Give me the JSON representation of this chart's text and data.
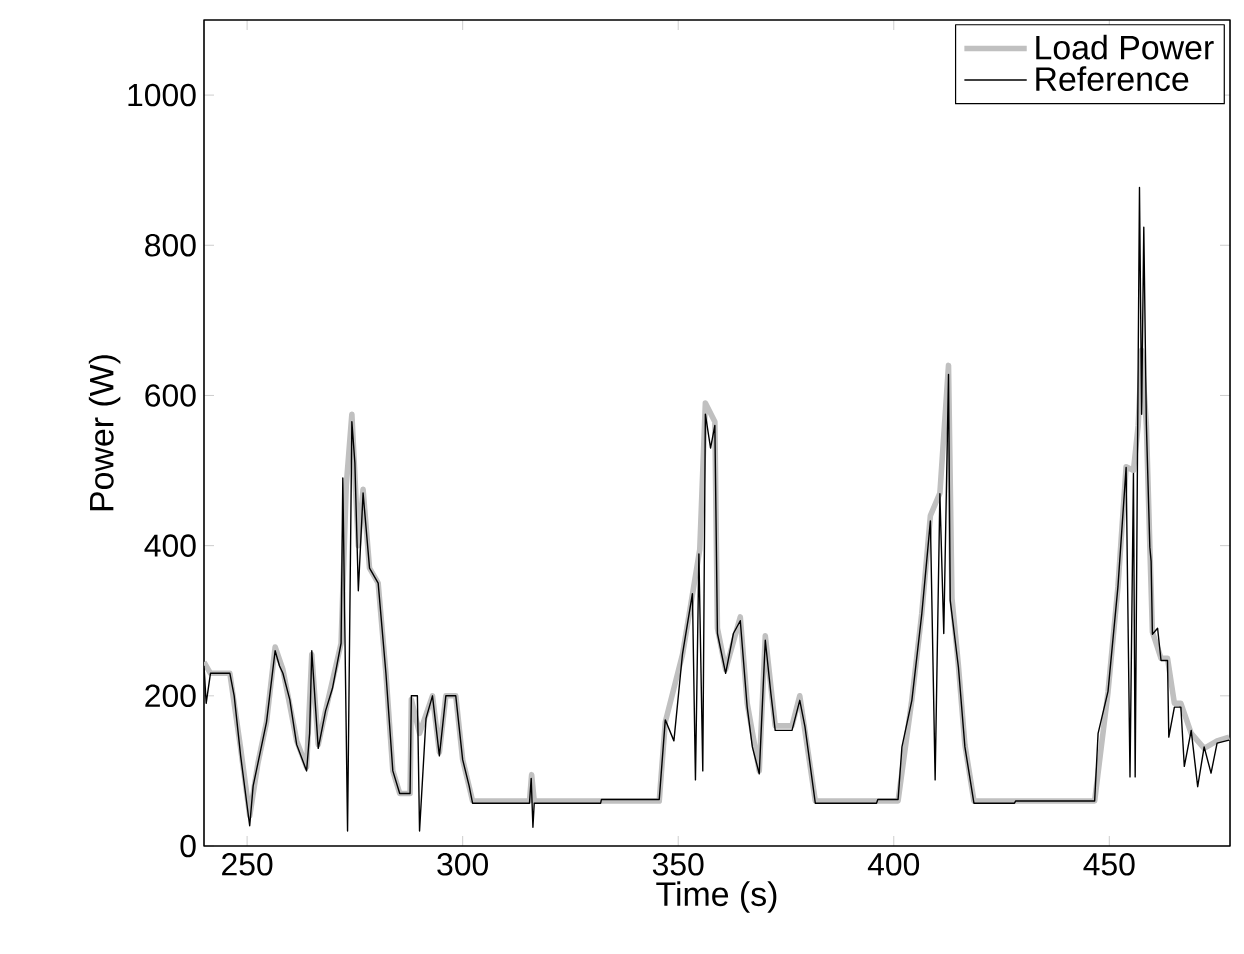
{
  "chart_data": {
    "type": "line",
    "xlabel": "Time (s)",
    "ylabel": "Power (W)",
    "xlim": [
      240,
      478
    ],
    "ylim": [
      0,
      1100
    ],
    "xticks": [
      250,
      300,
      350,
      400,
      450
    ],
    "yticks": [
      0,
      200,
      400,
      600,
      800,
      1000
    ],
    "legend": "top right",
    "grid": false,
    "line_style": "solid",
    "marker": "none",
    "series": [
      {
        "name": "Load Power",
        "color": "#c0c0c0",
        "x": [
          240,
          241.5,
          246,
          248.5,
          250.6,
          252.5,
          254.5,
          256.5,
          258.3,
          261.5,
          263.8,
          265,
          266.5,
          268.2,
          271.8,
          273,
          274.3,
          275.8,
          276.9,
          278.4,
          280.4,
          282.2,
          283.8,
          285.4,
          287.8,
          288.1,
          290,
          291.5,
          293,
          294.6,
          296.1,
          298.4,
          300,
          302.3,
          315.5,
          316,
          316.6,
          345.6,
          347,
          351,
          353.3,
          355,
          356.3,
          358.5,
          359.1,
          361,
          364.4,
          366,
          368.8,
          370.2,
          372.5,
          376.4,
          378.2,
          381.8,
          401,
          404.2,
          406.5,
          408.5,
          410.7,
          412.7,
          413.5,
          415,
          416.5,
          418.6,
          446.6,
          449.7,
          452,
          453.9,
          455.6,
          456.7,
          457.5,
          458.6,
          459.4,
          460,
          462,
          463.5,
          465.1,
          466.6,
          469,
          472,
          475,
          477.8
        ],
        "values": [
          245,
          230,
          230,
          130,
          40,
          110,
          165,
          265,
          235,
          140,
          105,
          255,
          135,
          180,
          270,
          480,
          575,
          400,
          475,
          370,
          350,
          230,
          100,
          70,
          70,
          195,
          150,
          175,
          200,
          125,
          200,
          200,
          115,
          60,
          60,
          95,
          60,
          60,
          165,
          255,
          335,
          395,
          590,
          565,
          290,
          235,
          305,
          190,
          100,
          280,
          160,
          160,
          200,
          60,
          60,
          195,
          310,
          440,
          470,
          640,
          330,
          240,
          135,
          60,
          60,
          205,
          345,
          505,
          500,
          560,
          660,
          560,
          400,
          285,
          250,
          250,
          190,
          190,
          150,
          130,
          140,
          145
        ]
      },
      {
        "name": "Reference",
        "color": "#000000",
        "x": [
          240,
          240.5,
          241.5,
          246,
          247,
          248.5,
          250.6,
          251.4,
          252.5,
          254.5,
          256.5,
          257.5,
          258.3,
          259.9,
          261.5,
          263.8,
          264.5,
          265,
          266.5,
          268.2,
          269.8,
          271.8,
          272.2,
          273.3,
          274.3,
          275,
          275.8,
          276.9,
          278.4,
          280.4,
          282.2,
          283.8,
          285.4,
          287.8,
          288.1,
          289.5,
          290,
          291.5,
          293,
          294.6,
          296.1,
          298.4,
          300,
          301.5,
          302.3,
          315.5,
          315.9,
          316.3,
          316.6,
          332,
          332.2,
          345.6,
          347,
          349,
          351,
          353.3,
          354,
          354.8,
          355.7,
          356.3,
          357.5,
          358.5,
          359.1,
          361,
          362.8,
          364.4,
          366,
          367.2,
          368.8,
          370.2,
          371.5,
          372.5,
          376.4,
          378.2,
          379.4,
          381.8,
          396,
          396.3,
          401,
          401.9,
          404.2,
          406.5,
          408.5,
          409.6,
          410.7,
          411.6,
          412.7,
          413.1,
          415,
          416.5,
          418.6,
          428,
          428.3,
          446.6,
          447.4,
          449.7,
          452,
          453.9,
          454.8,
          455.6,
          456,
          456.7,
          457,
          457.5,
          458,
          458.6,
          459.4,
          459.7,
          460,
          461.2,
          462,
          463.5,
          463.8,
          465.1,
          466.6,
          467.4,
          469,
          470.5,
          472,
          473.6,
          475,
          477.8
        ],
        "values": [
          240,
          190,
          230,
          230,
          200,
          120,
          27,
          80,
          110,
          165,
          260,
          240,
          230,
          195,
          135,
          100,
          150,
          260,
          130,
          180,
          210,
          270,
          490,
          20,
          565,
          510,
          340,
          470,
          370,
          350,
          230,
          100,
          70,
          70,
          200,
          200,
          20,
          170,
          200,
          120,
          200,
          200,
          115,
          80,
          57,
          57,
          90,
          25,
          57,
          57,
          62,
          62,
          168,
          140,
          256,
          336,
          88,
          389,
          100,
          575,
          530,
          560,
          283,
          230,
          283,
          300,
          185,
          132,
          96,
          274,
          203,
          154,
          154,
          194,
          159,
          57,
          57,
          62,
          62,
          132,
          194,
          309,
          433,
          88,
          469,
          283,
          628,
          327,
          238,
          132,
          57,
          57,
          60,
          60,
          150,
          206,
          345,
          504,
          92,
          496,
          92,
          646,
          877,
          575,
          824,
          561,
          398,
          379,
          282,
          290,
          247,
          247,
          145,
          185,
          185,
          106,
          154,
          79,
          132,
          97,
          137,
          141
        ]
      }
    ]
  }
}
